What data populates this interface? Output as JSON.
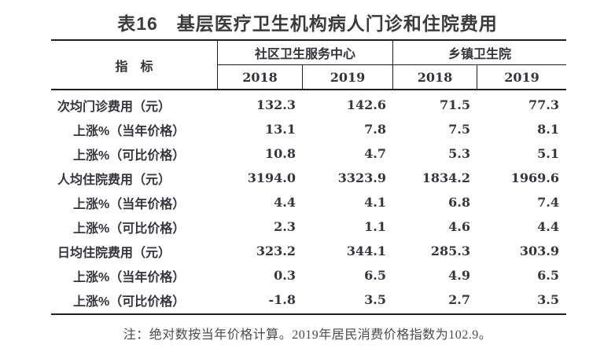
{
  "title": "表16　基层医疗卫生机构病人门诊和住院费用",
  "table": {
    "indicator_header": "指　标",
    "groups": [
      {
        "label": "社区卫生服务中心",
        "years": [
          "2018",
          "2019"
        ]
      },
      {
        "label": "乡镇卫生院",
        "years": [
          "2018",
          "2019"
        ]
      }
    ],
    "rows": [
      {
        "label": "次均门诊费用（元）",
        "indent": false,
        "values": [
          "132.3",
          "142.6",
          "71.5",
          "77.3"
        ]
      },
      {
        "label": "上涨%（当年价格）",
        "indent": true,
        "values": [
          "13.1",
          "7.8",
          "7.5",
          "8.1"
        ]
      },
      {
        "label": "上涨%（可比价格）",
        "indent": true,
        "values": [
          "10.8",
          "4.7",
          "5.3",
          "5.1"
        ]
      },
      {
        "label": "人均住院费用（元）",
        "indent": false,
        "values": [
          "3194.0",
          "3323.9",
          "1834.2",
          "1969.6"
        ]
      },
      {
        "label": "上涨%（当年价格）",
        "indent": true,
        "values": [
          "4.4",
          "4.1",
          "6.8",
          "7.4"
        ]
      },
      {
        "label": "上涨%（可比价格）",
        "indent": true,
        "values": [
          "2.3",
          "1.1",
          "4.6",
          "4.4"
        ]
      },
      {
        "label": "日均住院费用（元）",
        "indent": false,
        "values": [
          "323.2",
          "344.1",
          "285.3",
          "303.9"
        ]
      },
      {
        "label": "上涨%（当年价格）",
        "indent": true,
        "values": [
          "0.3",
          "6.5",
          "4.9",
          "6.5"
        ]
      },
      {
        "label": "上涨%（可比价格）",
        "indent": true,
        "values": [
          "-1.8",
          "3.5",
          "2.7",
          "3.5"
        ]
      }
    ]
  },
  "note": "注：绝对数按当年价格计算。2019年居民消费价格指数为102.9。",
  "colors": {
    "background": "#ffffff",
    "title_text": "#3b3b3b",
    "body_text": "#35353c",
    "border": "#1e1e1e",
    "note_text": "#4b4b4b"
  }
}
